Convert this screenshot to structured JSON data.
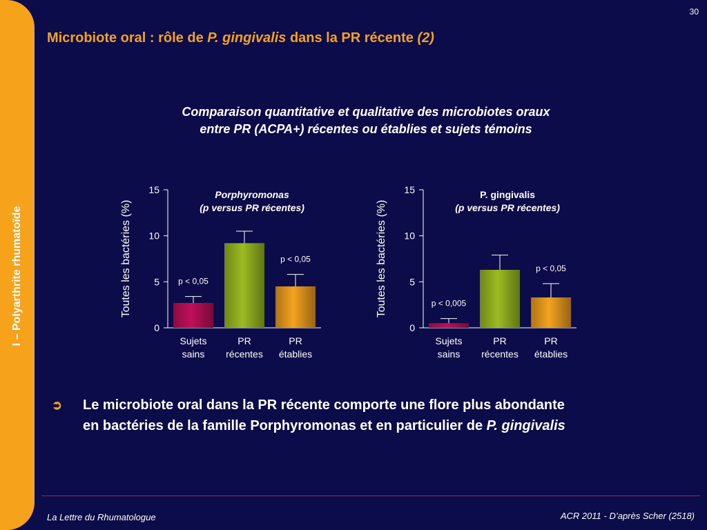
{
  "side_label": "I – Polyarthrite rhumatoïde",
  "page_number": "30",
  "title": {
    "part1": "Microbiote oral : rôle de ",
    "italic1": "P. gingivalis",
    "part2": " dans la PR récente ",
    "italic2": "(2)"
  },
  "subtitle": {
    "line1": "Comparaison quantitative et qualitative des microbiotes oraux",
    "line2": "entre PR (ACPA+) récentes ou établies et sujets témoins"
  },
  "bullet": {
    "icon": "arrow-circle-icon",
    "text": "Le microbiote oral dans la PR récente comporte une flore plus abondante en bactéries de la famille Porphyromonas et en particulier de ",
    "italic": "P. gingivalis"
  },
  "footer": {
    "left": "La Lettre du Rhumatologue",
    "right": "ACR 2011 - D’après Scher (2518)"
  },
  "colors": {
    "background": "#0c0c4a",
    "accent": "#f7a21b",
    "bar_healthy": "#c0105a",
    "bar_recent": "#9bbb22",
    "bar_established": "#f3a21e"
  },
  "chart_data": [
    {
      "type": "bar",
      "title_line1": "Porphyromonas",
      "title_line2": "(p versus PR récentes)",
      "title_italic": true,
      "ylabel": "Toutes les bactéries (%)",
      "ylim": [
        0,
        15
      ],
      "yticks": [
        0,
        5,
        10,
        15
      ],
      "categories": [
        [
          "Sujets",
          "sains"
        ],
        [
          "PR",
          "récentes"
        ],
        [
          "PR",
          "établies"
        ]
      ],
      "values": [
        2.7,
        9.2,
        4.5
      ],
      "errors": [
        0.7,
        1.3,
        1.3
      ],
      "annotations": [
        "p < 0,05",
        "",
        "p < 0,05"
      ]
    },
    {
      "type": "bar",
      "title_line1": "P. gingivalis",
      "title_line2": "(p versus PR récentes)",
      "title_italic": false,
      "ylabel": "Toutes les bactéries (%)",
      "ylim": [
        0,
        15
      ],
      "yticks": [
        0,
        5,
        10,
        15
      ],
      "categories": [
        [
          "Sujets",
          "sains"
        ],
        [
          "PR",
          "récentes"
        ],
        [
          "PR",
          "établies"
        ]
      ],
      "values": [
        0.5,
        6.3,
        3.3
      ],
      "errors": [
        0.5,
        1.6,
        1.5
      ],
      "annotations": [
        "p < 0,005",
        "",
        "p < 0,05"
      ]
    }
  ]
}
